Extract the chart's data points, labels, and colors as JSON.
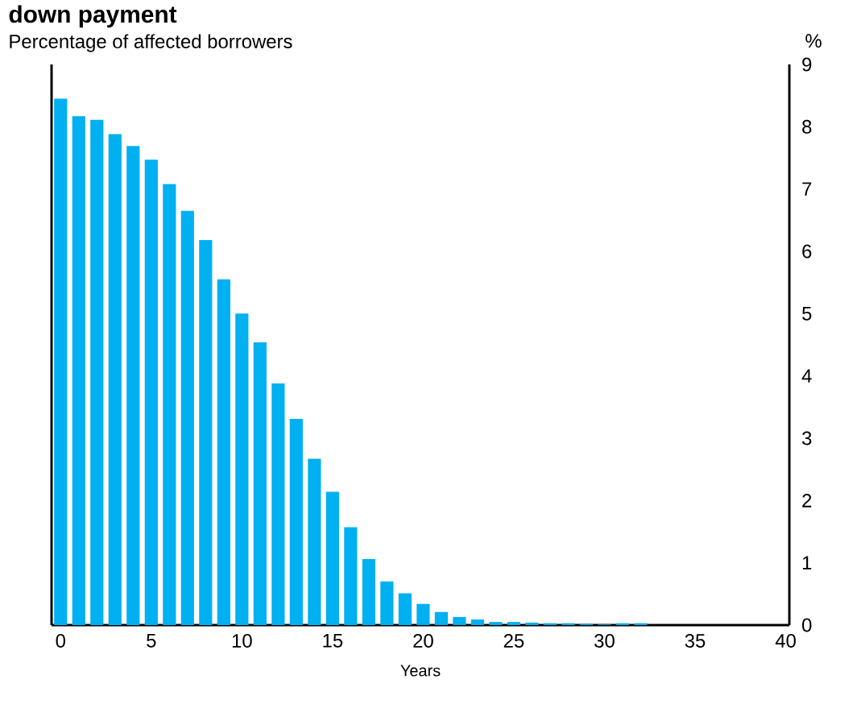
{
  "chart_data": {
    "type": "bar",
    "title": "down payment",
    "subtitle": "Percentage of affected borrowers",
    "xlabel": "Years",
    "ylabel": "%",
    "x": [
      0,
      1,
      2,
      3,
      4,
      5,
      6,
      7,
      8,
      9,
      10,
      11,
      12,
      13,
      14,
      15,
      16,
      17,
      18,
      19,
      20,
      21,
      22,
      23,
      24,
      25,
      26,
      27,
      28,
      29,
      30,
      31,
      32
    ],
    "values": [
      8.45,
      8.17,
      8.11,
      7.88,
      7.69,
      7.47,
      7.08,
      6.65,
      6.18,
      5.55,
      5.0,
      4.54,
      3.88,
      3.31,
      2.67,
      2.14,
      1.57,
      1.06,
      0.7,
      0.51,
      0.34,
      0.21,
      0.13,
      0.09,
      0.05,
      0.05,
      0.04,
      0.03,
      0.03,
      0.02,
      0.01,
      0.03,
      0.03
    ],
    "color": "#00b0f0",
    "xlim": [
      -0.5,
      40.2
    ],
    "ylim": [
      0,
      9
    ],
    "xticks": [
      0,
      5,
      10,
      15,
      20,
      25,
      30,
      35,
      40
    ],
    "yticks": [
      0,
      1,
      2,
      3,
      4,
      5,
      6,
      7,
      8,
      9
    ]
  }
}
